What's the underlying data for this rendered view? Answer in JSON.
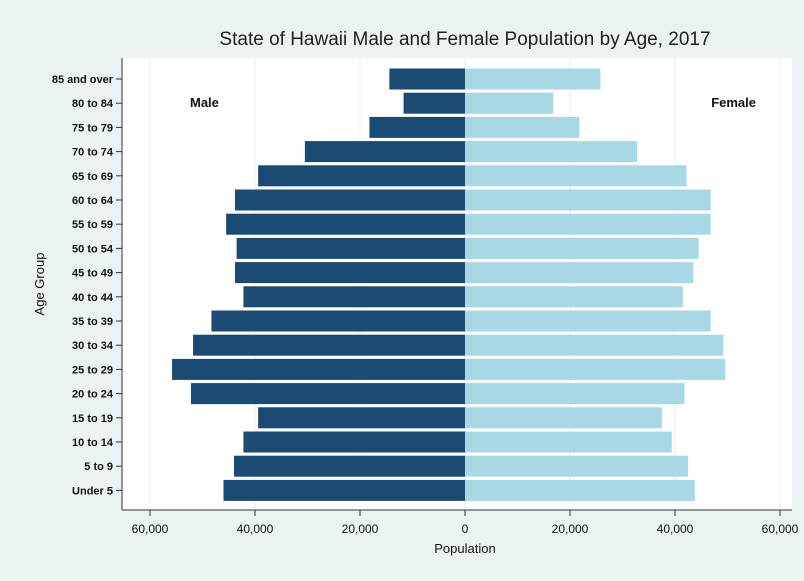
{
  "chart_data": {
    "type": "bar",
    "orientation": "horizontal",
    "title": "State of Hawaii Male and Female Population by Age, 2017",
    "xlabel": "Population",
    "ylabel": "Age Group",
    "xlim": [
      -60000,
      60000
    ],
    "xticks": [
      "60,000",
      "40,000",
      "20,000",
      "0",
      "20,000",
      "40,000",
      "60,000"
    ],
    "categories": [
      "85 and over",
      "80 to 84",
      "75 to 79",
      "70 to 74",
      "65 to 69",
      "60 to 64",
      "55 to 59",
      "50 to 54",
      "45 to 49",
      "40 to 44",
      "35 to 39",
      "30 to 34",
      "25 to 29",
      "20 to 24",
      "15 to 19",
      "10 to 14",
      "5 to 9",
      "Under 5"
    ],
    "series": [
      {
        "name": "Male",
        "color": "#1b4a72",
        "values": [
          14400,
          11700,
          18200,
          30500,
          39400,
          43800,
          45500,
          43500,
          43800,
          42200,
          48300,
          51800,
          55800,
          52200,
          39400,
          42200,
          44000,
          46000
        ]
      },
      {
        "name": "Female",
        "color": "#a8d8e6",
        "values": [
          25800,
          16800,
          21800,
          32800,
          42200,
          46800,
          46800,
          44500,
          43500,
          41500,
          46800,
          49200,
          49600,
          41800,
          37500,
          39400,
          42500,
          43800
        ]
      }
    ],
    "annotations": [
      {
        "text": "Male",
        "series": "Male"
      },
      {
        "text": "Female",
        "series": "Female"
      }
    ],
    "grid": "x",
    "legend": "none"
  }
}
